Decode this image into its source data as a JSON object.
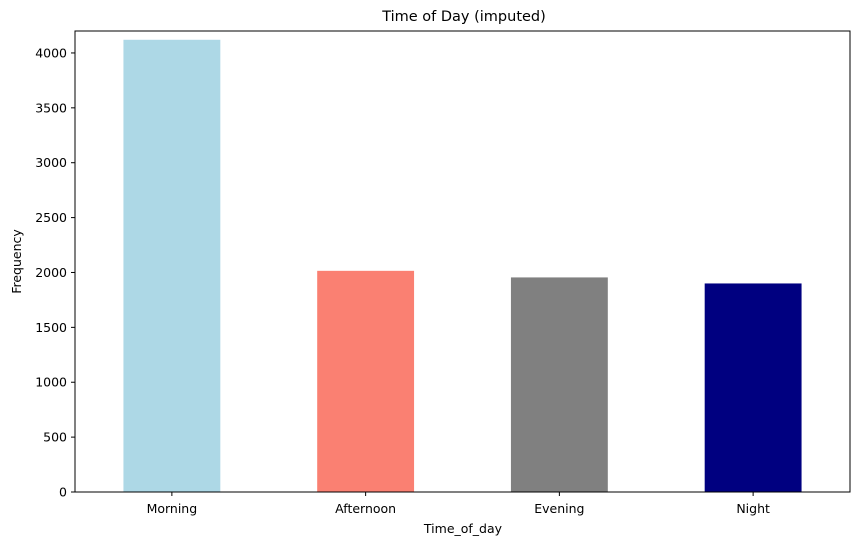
{
  "chart_data": {
    "type": "bar",
    "title": "Time of Day (imputed)",
    "xlabel": "Time_of_day",
    "ylabel": "Frequency",
    "categories": [
      "Morning",
      "Afternoon",
      "Evening",
      "Night"
    ],
    "values": [
      4120,
      2015,
      1955,
      1900
    ],
    "colors": [
      "#add8e6",
      "#fa8072",
      "#808080",
      "#000080"
    ],
    "ylim": [
      0,
      4200
    ],
    "yticks": [
      0,
      500,
      1000,
      1500,
      2000,
      2500,
      3000,
      3500,
      4000
    ],
    "grid": false,
    "legend": "none"
  }
}
